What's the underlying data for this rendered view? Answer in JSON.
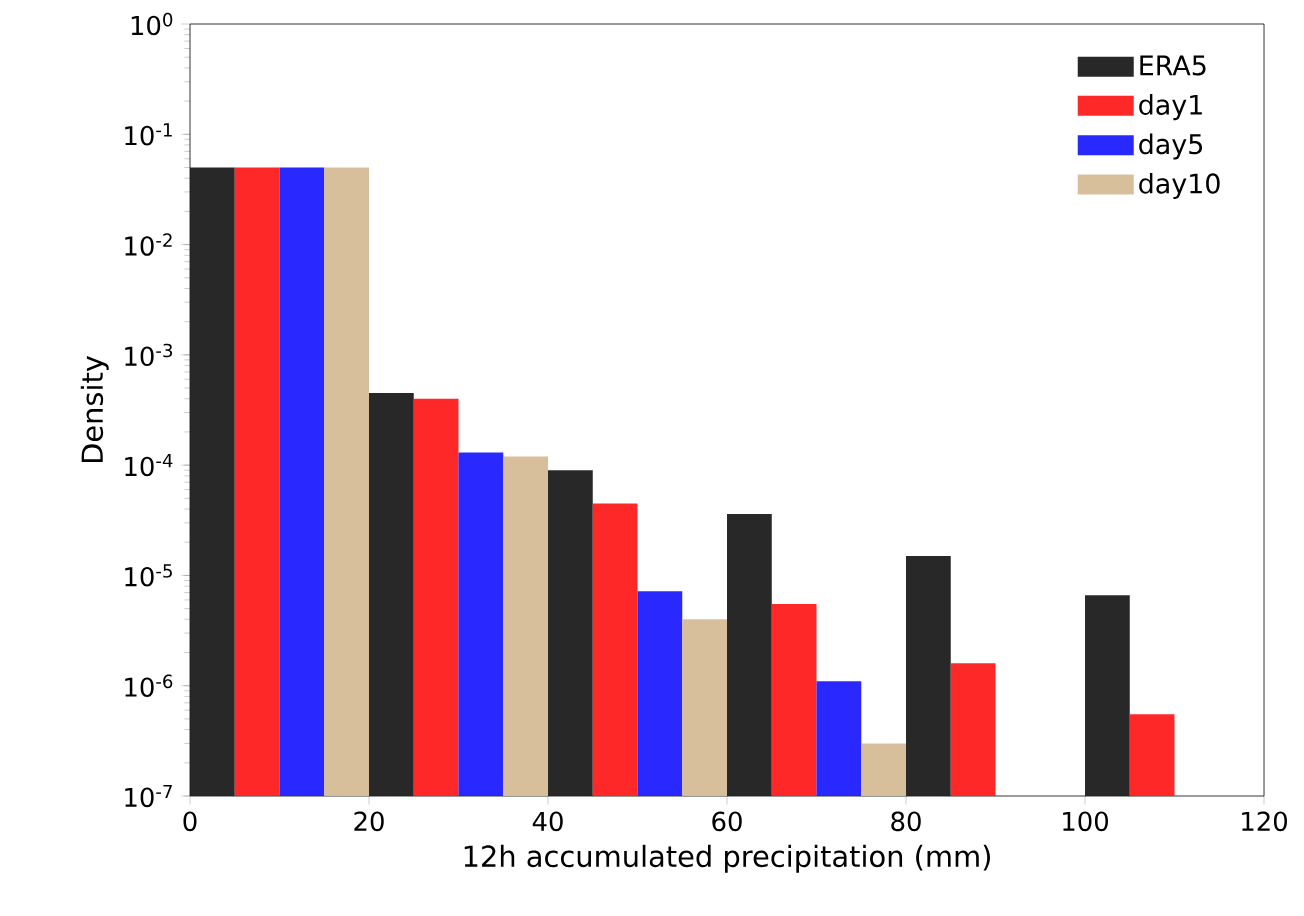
{
  "chart_data": {
    "type": "bar",
    "xlabel": "12h accumulated precipitation (mm)",
    "ylabel": "Density",
    "log": "y",
    "xlim": [
      0,
      120
    ],
    "xticks": [
      0,
      20,
      40,
      60,
      80,
      100,
      120
    ],
    "ylim": [
      1e-07,
      1
    ],
    "yticks": [
      {
        "value": 1e-07,
        "label": "10$^{-7}$"
      },
      {
        "value": 1e-06,
        "label": "10$^{-6}$"
      },
      {
        "value": 1e-05,
        "label": "10$^{-5}$"
      },
      {
        "value": 0.0001,
        "label": "10$^{-4}$"
      },
      {
        "value": 0.001,
        "label": "10$^{-3}$"
      },
      {
        "value": 0.01,
        "label": "10$^{-2}$"
      },
      {
        "value": 0.1,
        "label": "10$^{-1}$"
      },
      {
        "value": 1,
        "label": "10$^{0}$"
      }
    ],
    "series": [
      {
        "name": "ERA5",
        "color": "#1c1c1c",
        "x": [
          2.5,
          22.5,
          42.5,
          62.5,
          82.5,
          102.5
        ],
        "values": [
          0.05,
          0.00045,
          9e-05,
          3.6e-05,
          1.5e-05,
          6.6e-06
        ]
      },
      {
        "name": "day1",
        "color": "#ff1c1c",
        "x": [
          7.5,
          27.5,
          47.5,
          67.5,
          87.5,
          107.5
        ],
        "values": [
          0.05,
          0.0004,
          4.5e-05,
          5.5e-06,
          1.6e-06,
          5.5e-07
        ]
      },
      {
        "name": "day5",
        "color": "#1c1cff",
        "x": [
          12.5,
          32.5,
          52.5,
          72.5
        ],
        "values": [
          0.05,
          0.00013,
          7.2e-06,
          1.1e-06
        ]
      },
      {
        "name": "day10",
        "color": "#d6bc96",
        "x": [
          17.5,
          37.5,
          57.5,
          77.5
        ],
        "values": [
          0.05,
          0.00012,
          4e-06,
          3e-07
        ]
      }
    ],
    "legend": "top right",
    "grid": false
  }
}
